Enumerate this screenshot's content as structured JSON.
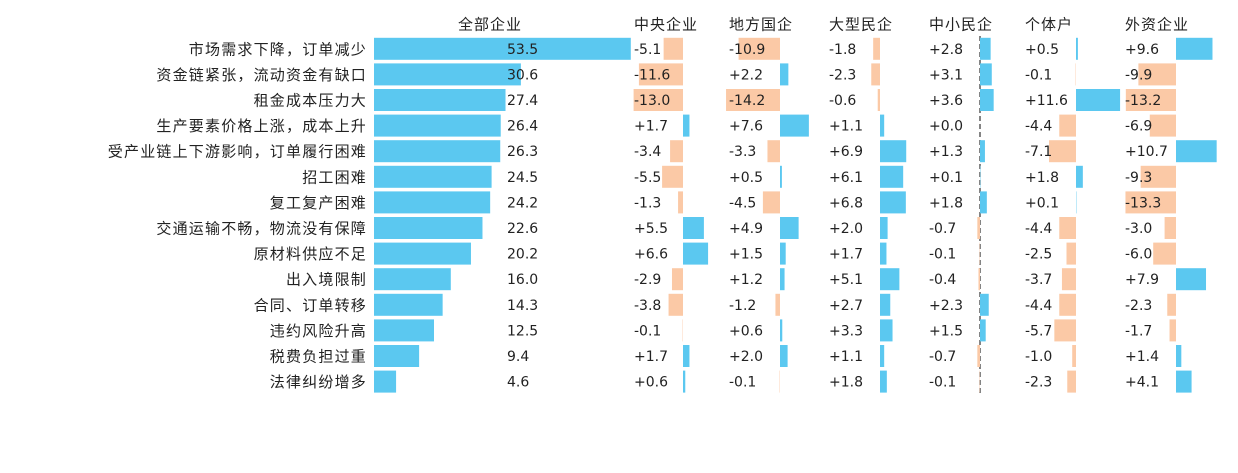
{
  "chart_data": {
    "type": "bar",
    "title": "",
    "colors": {
      "positive": "#5bc8f0",
      "negative": "#fbc9a6"
    },
    "categories": [
      "市场需求下降，订单减少",
      "资金链紧张，流动资金有缺口",
      "租金成本压力大",
      "生产要素价格上涨，成本上升",
      "受产业链上下游影响，订单履行困难",
      "招工困难",
      "复工复产困难",
      "交通运输不畅，物流没有保障",
      "原材料供应不足",
      "出入境限制",
      "合同、订单转移",
      "违约风险升高",
      "税费负担过重",
      "法律纠纷增多"
    ],
    "series": [
      {
        "name": "全部企业",
        "values": [
          53.5,
          30.6,
          27.4,
          26.4,
          26.3,
          24.5,
          24.2,
          22.6,
          20.2,
          16.0,
          14.3,
          12.5,
          9.4,
          4.6
        ],
        "labels": [
          "53.5",
          "30.6",
          "27.4",
          "26.4",
          "26.3",
          "24.5",
          "24.2",
          "22.6",
          "20.2",
          "16.0",
          "14.3",
          "12.5",
          "9.4",
          "4.6"
        ]
      },
      {
        "name": "中央企业",
        "values": [
          -5.1,
          -11.6,
          -13.0,
          1.7,
          -3.4,
          -5.5,
          -1.3,
          5.5,
          6.6,
          -2.9,
          -3.8,
          -0.1,
          1.7,
          0.6
        ],
        "labels": [
          "-5.1",
          "-11.6",
          "-13.0",
          "+1.7",
          "-3.4",
          "-5.5",
          "-1.3",
          "+5.5",
          "+6.6",
          "-2.9",
          "-3.8",
          "-0.1",
          "+1.7",
          "+0.6"
        ]
      },
      {
        "name": "地方国企",
        "values": [
          -10.9,
          2.2,
          -14.2,
          7.6,
          -3.3,
          0.5,
          -4.5,
          4.9,
          1.5,
          1.2,
          -1.2,
          0.6,
          2.0,
          -0.1
        ],
        "labels": [
          "-10.9",
          "+2.2",
          "-14.2",
          "+7.6",
          "-3.3",
          "+0.5",
          "-4.5",
          "+4.9",
          "+1.5",
          "+1.2",
          "-1.2",
          "+0.6",
          "+2.0",
          "-0.1"
        ]
      },
      {
        "name": "大型民企",
        "values": [
          -1.8,
          -2.3,
          -0.6,
          1.1,
          6.9,
          6.1,
          6.8,
          2.0,
          1.7,
          5.1,
          2.7,
          3.3,
          1.1,
          1.8
        ],
        "labels": [
          "-1.8",
          "-2.3",
          "-0.6",
          "+1.1",
          "+6.9",
          "+6.1",
          "+6.8",
          "+2.0",
          "+1.7",
          "+5.1",
          "+2.7",
          "+3.3",
          "+1.1",
          "+1.8"
        ]
      },
      {
        "name": "中小民企",
        "values": [
          2.8,
          3.1,
          3.6,
          0.0,
          1.3,
          0.1,
          1.8,
          -0.7,
          -0.1,
          -0.4,
          2.3,
          1.5,
          -0.7,
          -0.1
        ],
        "labels": [
          "+2.8",
          "+3.1",
          "+3.6",
          "+0.0",
          "+1.3",
          "+0.1",
          "+1.8",
          "-0.7",
          "-0.1",
          "-0.4",
          "+2.3",
          "+1.5",
          "-0.7",
          "-0.1"
        ]
      },
      {
        "name": "个体户",
        "values": [
          0.5,
          -0.1,
          11.6,
          -4.4,
          -7.1,
          1.8,
          0.1,
          -4.4,
          -2.5,
          -3.7,
          -4.4,
          -5.7,
          -1.0,
          -2.3
        ],
        "labels": [
          "+0.5",
          "-0.1",
          "+11.6",
          "-4.4",
          "-7.1",
          "+1.8",
          "+0.1",
          "-4.4",
          "-2.5",
          "-3.7",
          "-4.4",
          "-5.7",
          "-1.0",
          "-2.3"
        ]
      },
      {
        "name": "外资企业",
        "values": [
          9.6,
          -9.9,
          -13.2,
          -6.9,
          10.7,
          -9.3,
          -13.3,
          -3.0,
          -6.0,
          7.9,
          -2.3,
          -1.7,
          1.4,
          4.1
        ],
        "labels": [
          "+9.6",
          "-9.9",
          "-13.2",
          "-6.9",
          "+10.7",
          "-9.3",
          "-13.3",
          "-3.0",
          "-6.0",
          "+7.9",
          "-2.3",
          "-1.7",
          "+1.4",
          "+4.1"
        ]
      }
    ]
  }
}
